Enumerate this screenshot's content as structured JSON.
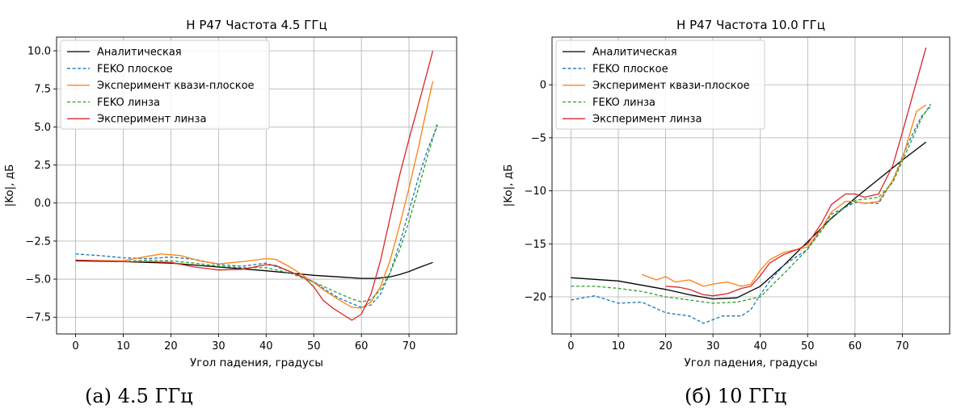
{
  "colors": {
    "analytic": "#000000",
    "feko_flat": "#1f77b4",
    "exp_quasi": "#ff7f0e",
    "feko_lens": "#2ca02c",
    "exp_lens": "#d62728"
  },
  "chart_data": [
    {
      "type": "line",
      "title": "H P47 Частота 4.5 ГГц",
      "xlabel": "Угол падения, градусы",
      "ylabel": "|Ko|, дБ",
      "caption": "(a) 4.5 ГГц",
      "xlim": [
        -4,
        80
      ],
      "ylim": [
        -8.6,
        10.9
      ],
      "xticks": [
        0,
        10,
        20,
        30,
        40,
        50,
        60,
        70
      ],
      "yticks": [
        -7.5,
        -5.0,
        -2.5,
        0.0,
        2.5,
        5.0,
        7.5,
        10.0
      ],
      "ytick_labels": [
        "−7.5",
        "−5.0",
        "−2.5",
        "0.0",
        "2.5",
        "5.0",
        "7.5",
        "10.0"
      ],
      "grid": true,
      "legend": "upper-left",
      "series": [
        {
          "name": "Аналитическая",
          "color": "#000000",
          "dash": "solid",
          "x": [
            0,
            10,
            20,
            30,
            40,
            45,
            50,
            55,
            60,
            63,
            66,
            68,
            70,
            72,
            75
          ],
          "y": [
            -3.8,
            -3.85,
            -3.95,
            -4.2,
            -4.45,
            -4.6,
            -4.75,
            -4.85,
            -4.95,
            -4.95,
            -4.85,
            -4.7,
            -4.5,
            -4.25,
            -3.9
          ]
        },
        {
          "name": "FEKO плоское",
          "color": "#1f77b4",
          "dash": "dashed",
          "x": [
            0,
            5,
            10,
            15,
            20,
            25,
            30,
            35,
            40,
            45,
            50,
            55,
            58,
            60,
            62,
            64,
            66,
            68,
            70,
            72,
            74,
            76
          ],
          "y": [
            -3.35,
            -3.45,
            -3.6,
            -3.65,
            -3.55,
            -3.7,
            -4.05,
            -4.15,
            -3.95,
            -4.5,
            -5.2,
            -6.2,
            -6.6,
            -6.85,
            -6.7,
            -6.0,
            -4.6,
            -2.7,
            -0.5,
            1.7,
            3.6,
            5.1
          ]
        },
        {
          "name": "Эксперимент квази-плоское",
          "color": "#ff7f0e",
          "dash": "solid",
          "x": [
            0,
            10,
            15,
            18,
            22,
            26,
            30,
            35,
            40,
            42,
            45,
            48,
            50,
            52,
            55,
            58,
            60,
            62,
            64,
            66,
            68,
            70,
            72,
            74,
            75
          ],
          "y": [
            -3.75,
            -3.8,
            -3.5,
            -3.35,
            -3.45,
            -3.8,
            -4.0,
            -3.85,
            -3.65,
            -3.7,
            -4.2,
            -4.8,
            -5.2,
            -5.7,
            -6.3,
            -6.85,
            -6.9,
            -6.5,
            -5.5,
            -3.8,
            -1.5,
            1.0,
            3.7,
            6.6,
            8.0
          ]
        },
        {
          "name": "FEKO линза",
          "color": "#2ca02c",
          "dash": "dashed",
          "x": [
            0,
            5,
            10,
            15,
            20,
            25,
            30,
            35,
            40,
            45,
            50,
            55,
            58,
            60,
            62,
            64,
            66,
            68,
            70,
            72,
            74,
            76
          ],
          "y": [
            -3.75,
            -3.8,
            -3.85,
            -3.75,
            -3.8,
            -3.95,
            -4.15,
            -4.25,
            -4.25,
            -4.6,
            -5.2,
            -5.9,
            -6.3,
            -6.5,
            -6.35,
            -5.7,
            -4.6,
            -3.1,
            -1.2,
            1.0,
            3.2,
            5.3
          ]
        },
        {
          "name": "Эксперимент линза",
          "color": "#d62728",
          "dash": "solid",
          "x": [
            0,
            10,
            15,
            20,
            25,
            30,
            35,
            40,
            42,
            45,
            48,
            50,
            52,
            54,
            56,
            58,
            60,
            62,
            64,
            66,
            68,
            70,
            72,
            74,
            75
          ],
          "y": [
            -3.75,
            -3.85,
            -3.85,
            -3.9,
            -4.2,
            -4.4,
            -4.35,
            -4.05,
            -4.1,
            -4.5,
            -4.9,
            -5.5,
            -6.4,
            -6.9,
            -7.3,
            -7.7,
            -7.3,
            -6.0,
            -3.8,
            -1.0,
            1.8,
            4.2,
            6.5,
            8.8,
            10.0
          ]
        }
      ]
    },
    {
      "type": "line",
      "title": "H P47 Частота 10.0 ГГц",
      "xlabel": "Угол падения, градусы",
      "ylabel": "|Ko|, дБ",
      "caption": "(б) 10 ГГц",
      "xlim": [
        -4,
        80
      ],
      "ylim": [
        -23.5,
        4.5
      ],
      "xticks": [
        0,
        10,
        20,
        30,
        40,
        50,
        60,
        70
      ],
      "yticks": [
        -20,
        -15,
        -10,
        -5,
        0
      ],
      "ytick_labels": [
        "−20",
        "−15",
        "−10",
        "−5",
        "0"
      ],
      "grid": true,
      "legend": "upper-left",
      "series": [
        {
          "name": "Аналитическая",
          "color": "#000000",
          "dash": "solid",
          "x": [
            0,
            10,
            20,
            25,
            30,
            35,
            40,
            45,
            50,
            55,
            60,
            65,
            70,
            75
          ],
          "y": [
            -18.2,
            -18.5,
            -19.3,
            -19.8,
            -20.2,
            -20.1,
            -19.0,
            -17.0,
            -14.8,
            -12.6,
            -10.7,
            -8.9,
            -7.1,
            -5.4
          ]
        },
        {
          "name": "FEKO плоское",
          "color": "#1f77b4",
          "dash": "dashed",
          "x": [
            0,
            5,
            10,
            15,
            20,
            25,
            28,
            32,
            36,
            38,
            40,
            42,
            45,
            50,
            55,
            60,
            65,
            68,
            70,
            72,
            74,
            76
          ],
          "y": [
            -20.3,
            -19.9,
            -20.6,
            -20.5,
            -21.5,
            -21.8,
            -22.5,
            -21.8,
            -21.8,
            -21.2,
            -19.8,
            -18.5,
            -17.0,
            -15.5,
            -12.2,
            -11.1,
            -11.2,
            -9.0,
            -6.8,
            -4.8,
            -3.0,
            -2.0
          ]
        },
        {
          "name": "Эксперимент квази-плоское",
          "color": "#ff7f0e",
          "dash": "solid",
          "x": [
            15,
            18,
            20,
            22,
            25,
            28,
            30,
            33,
            36,
            38,
            40,
            42,
            45,
            50,
            53,
            55,
            58,
            60,
            62,
            65,
            68,
            70,
            72,
            73,
            75
          ],
          "y": [
            -17.9,
            -18.4,
            -18.1,
            -18.6,
            -18.4,
            -19.0,
            -18.8,
            -18.6,
            -19.0,
            -18.8,
            -17.5,
            -16.5,
            -15.8,
            -15.3,
            -13.5,
            -12.0,
            -11.0,
            -11.0,
            -11.2,
            -11.0,
            -9.0,
            -7.0,
            -4.0,
            -2.5,
            -1.9
          ]
        },
        {
          "name": "FEKO линза",
          "color": "#2ca02c",
          "dash": "dashed",
          "x": [
            0,
            5,
            10,
            15,
            20,
            25,
            30,
            35,
            40,
            45,
            50,
            55,
            60,
            65,
            68,
            70,
            72,
            74,
            76
          ],
          "y": [
            -19.0,
            -19.0,
            -19.2,
            -19.5,
            -20.0,
            -20.3,
            -20.6,
            -20.5,
            -20.0,
            -17.8,
            -15.5,
            -12.5,
            -10.9,
            -10.6,
            -9.2,
            -7.2,
            -5.2,
            -3.2,
            -1.8
          ]
        },
        {
          "name": "Эксперимент линза",
          "color": "#d62728",
          "dash": "solid",
          "x": [
            20,
            23,
            25,
            28,
            30,
            33,
            36,
            38,
            40,
            42,
            45,
            48,
            50,
            53,
            55,
            58,
            60,
            62,
            65,
            68,
            70,
            72,
            75
          ],
          "y": [
            -19.0,
            -19.1,
            -19.3,
            -19.8,
            -19.9,
            -19.7,
            -19.2,
            -19.0,
            -18.0,
            -16.8,
            -16.0,
            -15.5,
            -15.0,
            -13.0,
            -11.3,
            -10.3,
            -10.3,
            -10.6,
            -10.3,
            -7.6,
            -4.5,
            -1.3,
            3.5
          ]
        }
      ]
    }
  ]
}
